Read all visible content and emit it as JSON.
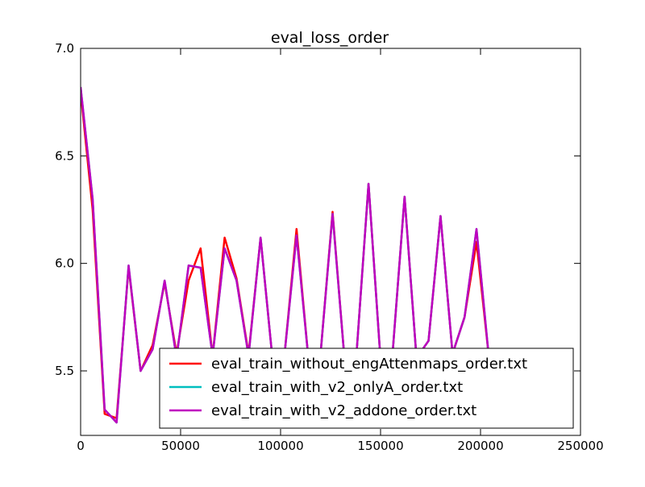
{
  "chart_data": {
    "type": "line",
    "title": "eval_loss_order",
    "xlabel": "",
    "ylabel": "",
    "xlim": [
      0,
      250000
    ],
    "ylim": [
      5.2,
      7.0
    ],
    "xticks": [
      0,
      50000,
      100000,
      150000,
      200000,
      250000
    ],
    "xtick_labels": [
      "0",
      "50000",
      "100000",
      "150000",
      "200000",
      "250000"
    ],
    "yticks": [
      5.5,
      6.0,
      6.5,
      7.0
    ],
    "ytick_labels": [
      "5.5",
      "6.0",
      "6.5",
      "7.0"
    ],
    "grid": false,
    "legend_position": "lower-right",
    "series": [
      {
        "name": "eval_train_without_engAttenmaps_order.txt",
        "color": "#ff0000",
        "x": [
          0,
          6000,
          12000,
          18000,
          24000,
          30000,
          36000,
          42000,
          48000,
          54000,
          60000,
          66000,
          72000,
          78000,
          84000,
          90000,
          96000,
          102000,
          108000,
          114000,
          120000,
          126000,
          132000,
          138000,
          144000,
          150000,
          156000,
          162000,
          168000,
          174000,
          180000,
          186000,
          192000,
          198000,
          204000
        ],
        "y": [
          6.8,
          6.25,
          5.3,
          5.28,
          5.98,
          5.5,
          5.62,
          5.91,
          5.58,
          5.92,
          6.07,
          5.57,
          6.12,
          5.93,
          5.58,
          6.12,
          5.55,
          5.58,
          6.16,
          5.55,
          5.58,
          6.24,
          5.55,
          5.58,
          6.37,
          5.55,
          5.58,
          6.31,
          5.56,
          5.64,
          6.22,
          5.58,
          5.75,
          6.1,
          5.58
        ]
      },
      {
        "name": "eval_train_with_v2_onlyA_order.txt",
        "color": "#00bfbf",
        "x": [
          0,
          6000,
          12000,
          18000,
          24000,
          30000,
          36000,
          42000,
          48000,
          54000,
          60000,
          66000,
          72000,
          78000,
          84000,
          90000,
          96000,
          102000,
          108000,
          114000,
          120000,
          126000,
          132000,
          138000,
          144000,
          150000,
          156000,
          162000,
          168000,
          174000,
          180000,
          186000,
          192000,
          198000,
          204000
        ],
        "y": [
          6.82,
          6.3,
          5.32,
          5.26,
          5.99,
          5.5,
          5.6,
          5.92,
          5.56,
          5.99,
          5.98,
          5.57,
          6.07,
          5.92,
          5.57,
          6.12,
          5.55,
          5.58,
          6.13,
          5.55,
          5.58,
          6.23,
          5.55,
          5.58,
          6.37,
          5.55,
          5.58,
          6.31,
          5.56,
          5.64,
          6.22,
          5.58,
          5.75,
          6.16,
          5.58
        ]
      },
      {
        "name": "eval_train_with_v2_addone_order.txt",
        "color": "#bf00bf",
        "x": [
          0,
          6000,
          12000,
          18000,
          24000,
          30000,
          36000,
          42000,
          48000,
          54000,
          60000,
          66000,
          72000,
          78000,
          84000,
          90000,
          96000,
          102000,
          108000,
          114000,
          120000,
          126000,
          132000,
          138000,
          144000,
          150000,
          156000,
          162000,
          168000,
          174000,
          180000,
          186000,
          192000,
          198000,
          204000
        ],
        "y": [
          6.82,
          6.3,
          5.32,
          5.26,
          5.99,
          5.5,
          5.6,
          5.92,
          5.56,
          5.99,
          5.98,
          5.57,
          6.07,
          5.92,
          5.57,
          6.12,
          5.55,
          5.58,
          6.13,
          5.55,
          5.58,
          6.23,
          5.55,
          5.58,
          6.37,
          5.55,
          5.58,
          6.31,
          5.56,
          5.64,
          6.22,
          5.58,
          5.75,
          6.16,
          5.58
        ]
      }
    ]
  }
}
